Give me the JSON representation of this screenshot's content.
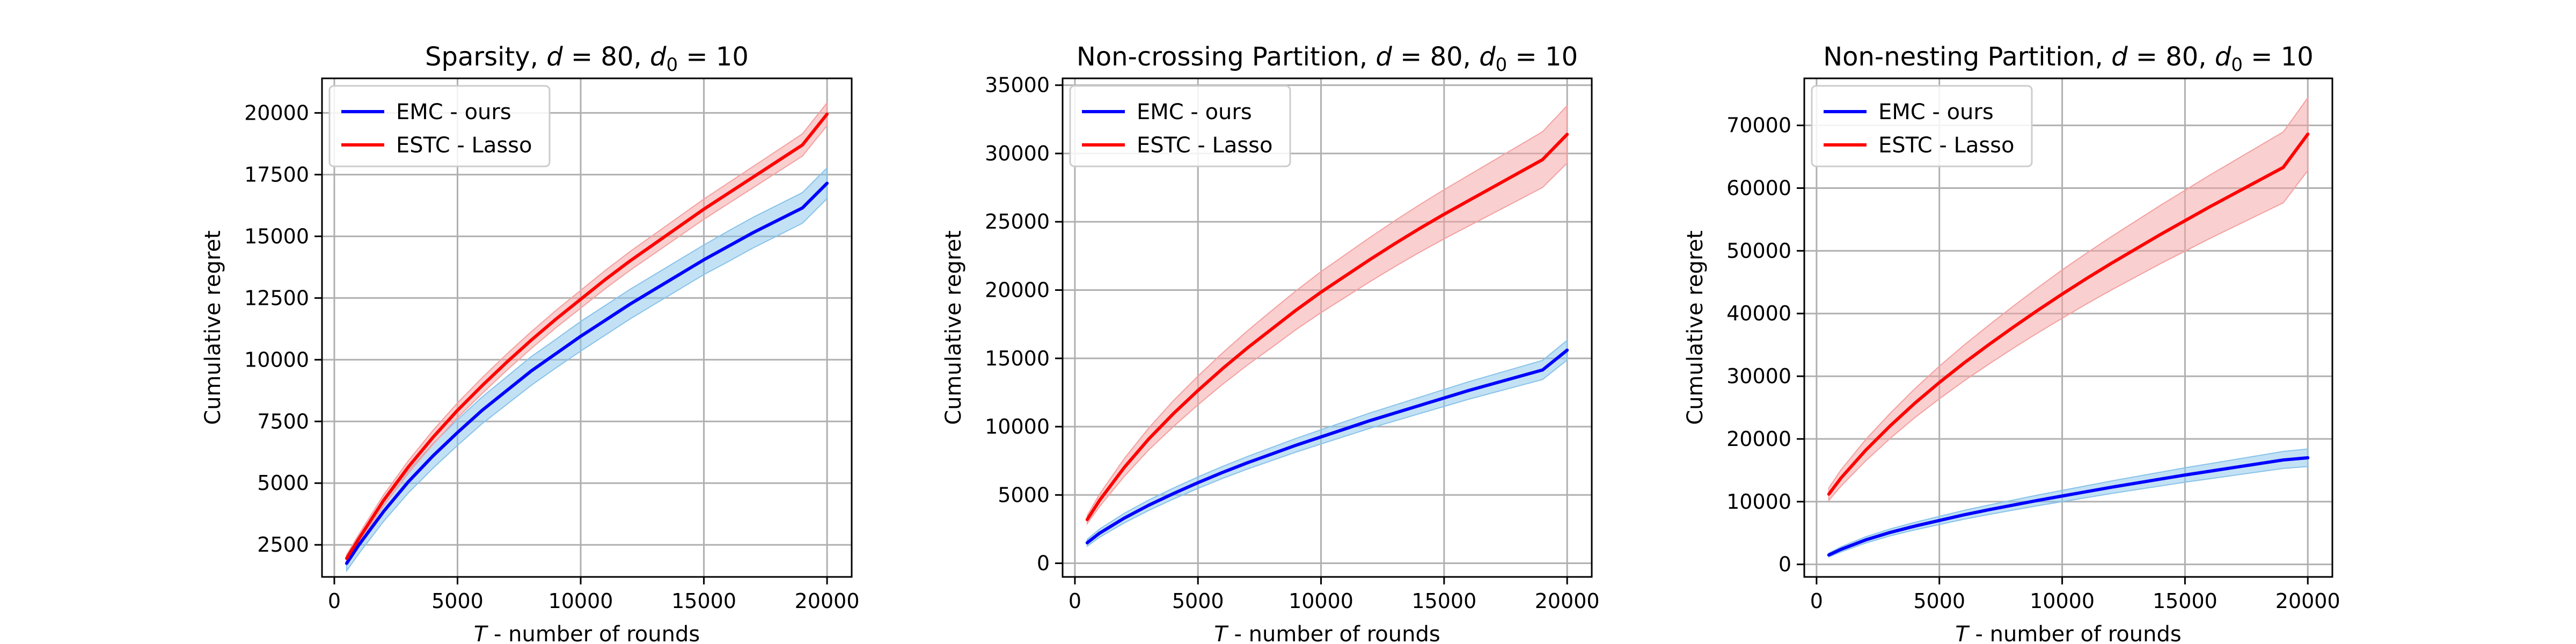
{
  "chart_data": [
    {
      "type": "line",
      "title_main": "Sparsity, ",
      "title_vars": [
        [
          "d",
          " = 80, "
        ],
        [
          "d",
          "0",
          " = 10"
        ]
      ],
      "xlabel_var": "T",
      "xlabel_text": " - number of rounds",
      "ylabel": "Cumulative regret",
      "xlim": [
        -500,
        21000
      ],
      "ylim": [
        1200,
        21400
      ],
      "xticks": [
        0,
        5000,
        10000,
        15000,
        20000
      ],
      "yticks": [
        2500,
        5000,
        7500,
        10000,
        12500,
        15000,
        17500,
        20000
      ],
      "grid": true,
      "legend_position": "upper-left",
      "x": [
        500,
        1000,
        2000,
        3000,
        4000,
        5000,
        6000,
        7000,
        8000,
        9000,
        10000,
        11000,
        12000,
        13000,
        14000,
        15000,
        16000,
        17000,
        18000,
        19000,
        20000
      ],
      "series": [
        {
          "name": "EMC - ours",
          "color": "#0000ff",
          "band_color": "#87c3ea",
          "values": [
            1750,
            2500,
            3850,
            5050,
            6100,
            7050,
            7950,
            8750,
            9550,
            10250,
            10950,
            11600,
            12250,
            12850,
            13450,
            14050,
            14600,
            15150,
            15650,
            16150,
            17150
          ],
          "band": [
            300,
            350,
            400,
            450,
            500,
            520,
            540,
            560,
            580,
            580,
            600,
            600,
            600,
            600,
            600,
            600,
            620,
            620,
            620,
            620,
            620
          ]
        },
        {
          "name": "ESTC - Lasso",
          "color": "#ff0000",
          "band_color": "#f4a0a0",
          "values": [
            1950,
            2750,
            4300,
            5650,
            6850,
            7950,
            8950,
            9900,
            10800,
            11650,
            12450,
            13250,
            14000,
            14700,
            15400,
            16100,
            16750,
            17400,
            18050,
            18700,
            19950
          ],
          "band": [
            150,
            180,
            220,
            250,
            280,
            300,
            320,
            330,
            340,
            350,
            360,
            370,
            380,
            390,
            400,
            410,
            420,
            430,
            440,
            450,
            460
          ]
        }
      ]
    },
    {
      "type": "line",
      "title_main": "Non-crossing Partition, ",
      "title_vars": [
        [
          "d",
          " = 80, "
        ],
        [
          "d",
          "0",
          " = 10"
        ]
      ],
      "xlabel_var": "T",
      "xlabel_text": " - number of rounds",
      "ylabel": "Cumulative regret",
      "xlim": [
        -500,
        21000
      ],
      "ylim": [
        -1000,
        35500
      ],
      "xticks": [
        0,
        5000,
        10000,
        15000,
        20000
      ],
      "yticks": [
        0,
        5000,
        10000,
        15000,
        20000,
        25000,
        30000,
        35000
      ],
      "grid": true,
      "legend_position": "upper-left",
      "x": [
        500,
        1000,
        2000,
        3000,
        4000,
        5000,
        6000,
        7000,
        8000,
        9000,
        10000,
        11000,
        12000,
        13000,
        14000,
        15000,
        16000,
        17000,
        18000,
        19000,
        20000
      ],
      "series": [
        {
          "name": "EMC - ours",
          "color": "#0000ff",
          "band_color": "#87c3ea",
          "values": [
            1500,
            2200,
            3300,
            4250,
            5100,
            5900,
            6650,
            7350,
            8000,
            8650,
            9250,
            9850,
            10450,
            11000,
            11550,
            12100,
            12650,
            13150,
            13650,
            14150,
            15600
          ],
          "band": [
            250,
            300,
            350,
            380,
            400,
            420,
            440,
            460,
            480,
            500,
            520,
            540,
            560,
            580,
            600,
            620,
            640,
            660,
            680,
            700,
            720
          ]
        },
        {
          "name": "ESTC - Lasso",
          "color": "#ff0000",
          "band_color": "#f4a0a0",
          "values": [
            3200,
            4600,
            7000,
            9100,
            10950,
            12650,
            14250,
            15750,
            17150,
            18550,
            19850,
            21050,
            22250,
            23400,
            24500,
            25550,
            26550,
            27550,
            28550,
            29550,
            31400
          ],
          "band": [
            300,
            450,
            650,
            800,
            950,
            1050,
            1150,
            1250,
            1350,
            1420,
            1500,
            1560,
            1620,
            1680,
            1740,
            1800,
            1860,
            1920,
            1980,
            2040,
            2100
          ]
        }
      ]
    },
    {
      "type": "line",
      "title_main": "Non-nesting Partition, ",
      "title_vars": [
        [
          "d",
          " = 80, "
        ],
        [
          "d",
          "0",
          " = 10"
        ]
      ],
      "xlabel_var": "T",
      "xlabel_text": " - number of rounds",
      "ylabel": "Cumulative regret",
      "xlim": [
        -500,
        21000
      ],
      "ylim": [
        -2000,
        77500
      ],
      "xticks": [
        0,
        5000,
        10000,
        15000,
        20000
      ],
      "yticks": [
        0,
        10000,
        20000,
        30000,
        40000,
        50000,
        60000,
        70000
      ],
      "grid": true,
      "legend_position": "upper-left",
      "x": [
        500,
        1000,
        2000,
        3000,
        4000,
        5000,
        6000,
        7000,
        8000,
        9000,
        10000,
        11000,
        12000,
        13000,
        14000,
        15000,
        16000,
        17000,
        18000,
        19000,
        20000
      ],
      "series": [
        {
          "name": "EMC - ours",
          "color": "#0000ff",
          "band_color": "#87c3ea",
          "values": [
            1500,
            2400,
            3900,
            5100,
            6100,
            7000,
            7900,
            8700,
            9450,
            10200,
            10900,
            11600,
            12300,
            12950,
            13600,
            14250,
            14850,
            15450,
            16050,
            16650,
            17000
          ],
          "band": [
            300,
            400,
            500,
            550,
            600,
            650,
            700,
            750,
            800,
            850,
            900,
            950,
            1000,
            1050,
            1100,
            1150,
            1200,
            1250,
            1300,
            1350,
            1400
          ]
        },
        {
          "name": "ESTC - Lasso",
          "color": "#ff0000",
          "band_color": "#f4a0a0",
          "values": [
            11200,
            13800,
            18200,
            22100,
            25700,
            29000,
            32100,
            35000,
            37800,
            40500,
            43100,
            45600,
            48000,
            50300,
            52600,
            54800,
            57000,
            59100,
            61200,
            63300,
            68600
          ],
          "band": [
            1000,
            1300,
            1700,
            2000,
            2300,
            2600,
            2850,
            3100,
            3350,
            3600,
            3850,
            4050,
            4250,
            4450,
            4650,
            4850,
            5050,
            5250,
            5450,
            5650,
            5800
          ]
        }
      ]
    }
  ]
}
